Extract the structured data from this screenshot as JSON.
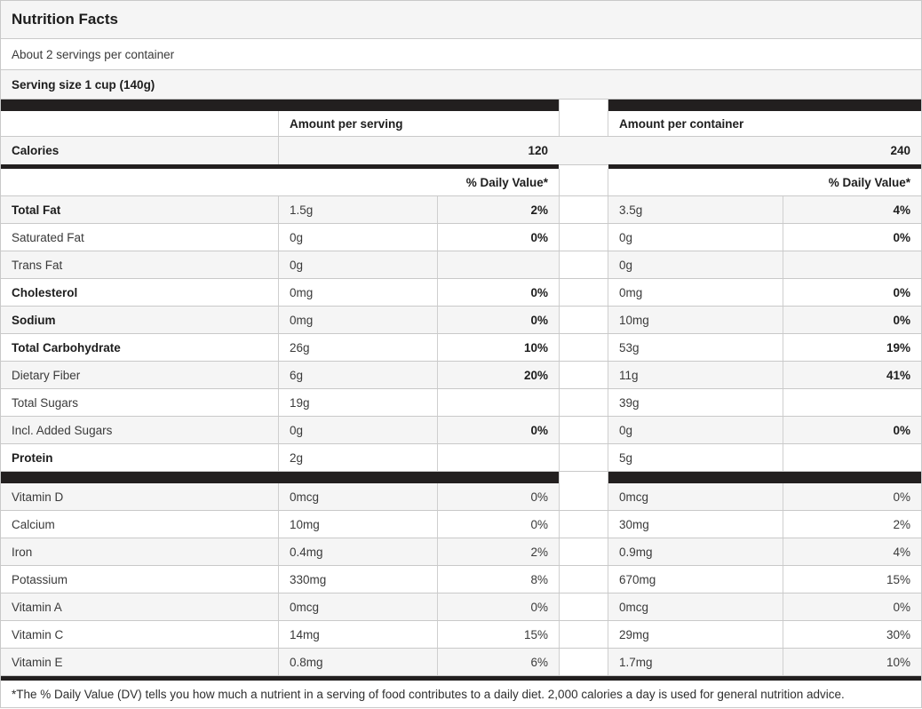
{
  "colors": {
    "bar_black": "#221f1f",
    "row_alt_gray": "#f5f5f5",
    "border_gray": "#c9c9c9",
    "text": "#3a3a3a",
    "text_bold": "#1d1d1d"
  },
  "header": {
    "title": "Nutrition Facts",
    "servings_per_container": "About 2 servings per container",
    "serving_size": "Serving size 1 cup (140g)"
  },
  "columns": {
    "per_serving_header": "Amount per serving",
    "per_container_header": "Amount per container",
    "daily_value_header_serving": "% Daily Value*",
    "daily_value_header_container": "% Daily Value*"
  },
  "calories": {
    "label": "Calories",
    "per_serving": "120",
    "per_container": "240"
  },
  "nutrients": [
    {
      "name": "Total Fat",
      "bold": true,
      "serving_amount": "1.5g",
      "serving_dv": "2%",
      "container_amount": "3.5g",
      "container_dv": "4%"
    },
    {
      "name": "Saturated Fat",
      "bold": false,
      "serving_amount": "0g",
      "serving_dv": "0%",
      "container_amount": "0g",
      "container_dv": "0%"
    },
    {
      "name": "Trans Fat",
      "bold": false,
      "serving_amount": "0g",
      "serving_dv": "",
      "container_amount": "0g",
      "container_dv": ""
    },
    {
      "name": "Cholesterol",
      "bold": true,
      "serving_amount": "0mg",
      "serving_dv": "0%",
      "container_amount": "0mg",
      "container_dv": "0%"
    },
    {
      "name": "Sodium",
      "bold": true,
      "serving_amount": "0mg",
      "serving_dv": "0%",
      "container_amount": "10mg",
      "container_dv": "0%"
    },
    {
      "name": "Total Carbohydrate",
      "bold": true,
      "serving_amount": "26g",
      "serving_dv": "10%",
      "container_amount": "53g",
      "container_dv": "19%"
    },
    {
      "name": "Dietary Fiber",
      "bold": false,
      "serving_amount": "6g",
      "serving_dv": "20%",
      "container_amount": "11g",
      "container_dv": "41%"
    },
    {
      "name": "Total Sugars",
      "bold": false,
      "serving_amount": "19g",
      "serving_dv": "",
      "container_amount": "39g",
      "container_dv": ""
    },
    {
      "name": "Incl. Added Sugars",
      "bold": false,
      "serving_amount": "0g",
      "serving_dv": "0%",
      "container_amount": "0g",
      "container_dv": "0%"
    },
    {
      "name": "Protein",
      "bold": true,
      "serving_amount": "2g",
      "serving_dv": "",
      "container_amount": "5g",
      "container_dv": ""
    }
  ],
  "micronutrients": [
    {
      "name": "Vitamin D",
      "serving_amount": "0mcg",
      "serving_dv": "0%",
      "container_amount": "0mcg",
      "container_dv": "0%"
    },
    {
      "name": "Calcium",
      "serving_amount": "10mg",
      "serving_dv": "0%",
      "container_amount": "30mg",
      "container_dv": "2%"
    },
    {
      "name": "Iron",
      "serving_amount": "0.4mg",
      "serving_dv": "2%",
      "container_amount": "0.9mg",
      "container_dv": "4%"
    },
    {
      "name": "Potassium",
      "serving_amount": "330mg",
      "serving_dv": "8%",
      "container_amount": "670mg",
      "container_dv": "15%"
    },
    {
      "name": "Vitamin A",
      "serving_amount": "0mcg",
      "serving_dv": "0%",
      "container_amount": "0mcg",
      "container_dv": "0%"
    },
    {
      "name": "Vitamin C",
      "serving_amount": "14mg",
      "serving_dv": "15%",
      "container_amount": "29mg",
      "container_dv": "30%"
    },
    {
      "name": "Vitamin E",
      "serving_amount": "0.8mg",
      "serving_dv": "6%",
      "container_amount": "1.7mg",
      "container_dv": "10%"
    }
  ],
  "footnote": "*The % Daily Value (DV) tells you how much a nutrient in a serving of food contributes to a daily diet. 2,000 calories a day is used for general nutrition advice."
}
